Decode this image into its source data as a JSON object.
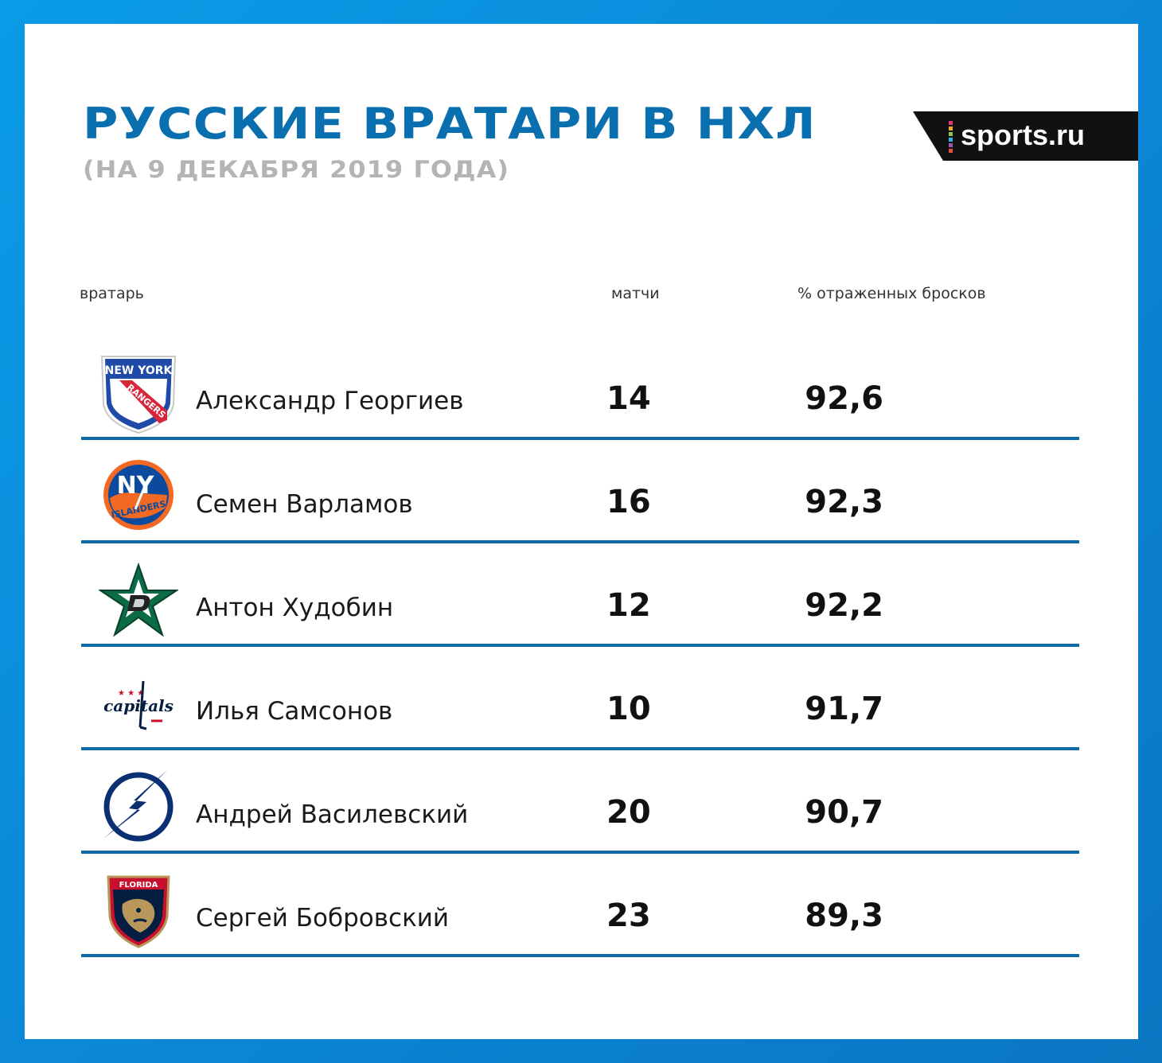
{
  "header": {
    "title": "РУССКИЕ ВРАТАРИ В НХЛ",
    "subtitle": "(НА 9 ДЕКАБРЯ 2019 ГОДА)",
    "brand": "sports.ru"
  },
  "colors": {
    "frame": "#0a8fdc",
    "title": "#0a6fae",
    "subtitle": "#b4b4b4",
    "rule": "#0b6aa6",
    "brand_bg": "#111111"
  },
  "chart_data": {
    "type": "table",
    "columns": [
      "вратарь",
      "матчи",
      "% отраженных бросков"
    ],
    "rows": [
      {
        "team_logo": "new-york-rangers-logo",
        "goalie": "Александр Георгиев",
        "games": "14",
        "save_pct": "92,6"
      },
      {
        "team_logo": "new-york-islanders-logo",
        "goalie": "Семен Варламов",
        "games": "16",
        "save_pct": "92,3"
      },
      {
        "team_logo": "dallas-stars-logo",
        "goalie": "Антон Худобин",
        "games": "12",
        "save_pct": "92,2"
      },
      {
        "team_logo": "washington-capitals-logo",
        "goalie": "Илья Самсонов",
        "games": "10",
        "save_pct": "91,7"
      },
      {
        "team_logo": "tampa-bay-lightning-logo",
        "goalie": "Андрей Василевский",
        "games": "20",
        "save_pct": "90,7"
      },
      {
        "team_logo": "florida-panthers-logo",
        "goalie": "Сергей Бобровский",
        "games": "23",
        "save_pct": "89,3"
      }
    ]
  }
}
